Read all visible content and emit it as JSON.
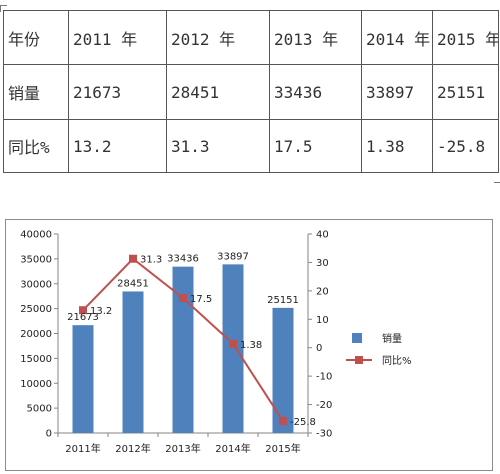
{
  "table": {
    "header": [
      "年份",
      "2011 年",
      "2012 年",
      "2013 年",
      "2014 年",
      "2015 年"
    ],
    "rows": [
      [
        "销量",
        "21673",
        "28451",
        "33436",
        "33897",
        "25151"
      ],
      [
        "同比%",
        "13.2",
        "31.3",
        "17.5",
        "1.38",
        "-25.8"
      ]
    ]
  },
  "chart_data": {
    "type": "bar+line",
    "categories": [
      "2011年",
      "2012年",
      "2013年",
      "2014年",
      "2015年"
    ],
    "series": [
      {
        "name": "销量",
        "type": "bar",
        "axis": "left",
        "values": [
          21673,
          28451,
          33436,
          33897,
          25151
        ],
        "labels": [
          "21673",
          "28451",
          "33436",
          "33897",
          "25151"
        ]
      },
      {
        "name": "同比%",
        "type": "line",
        "axis": "right",
        "values": [
          13.2,
          31.3,
          17.5,
          1.38,
          -25.8
        ],
        "labels": [
          "13.2",
          "31.3",
          "17.5",
          "1.38",
          "-25.8"
        ]
      }
    ],
    "y_left": {
      "min": 0,
      "max": 40000,
      "step": 5000,
      "ticks": [
        "0",
        "5000",
        "10000",
        "15000",
        "20000",
        "25000",
        "30000",
        "35000",
        "40000"
      ]
    },
    "y_right": {
      "min": -30,
      "max": 40,
      "step": 10,
      "ticks": [
        "-30",
        "-20",
        "-10",
        "0",
        "10",
        "20",
        "30",
        "40"
      ]
    },
    "grid": false,
    "legend_position": "right",
    "colors": {
      "bar": "#4f81bd",
      "line": "#c0504d"
    }
  }
}
